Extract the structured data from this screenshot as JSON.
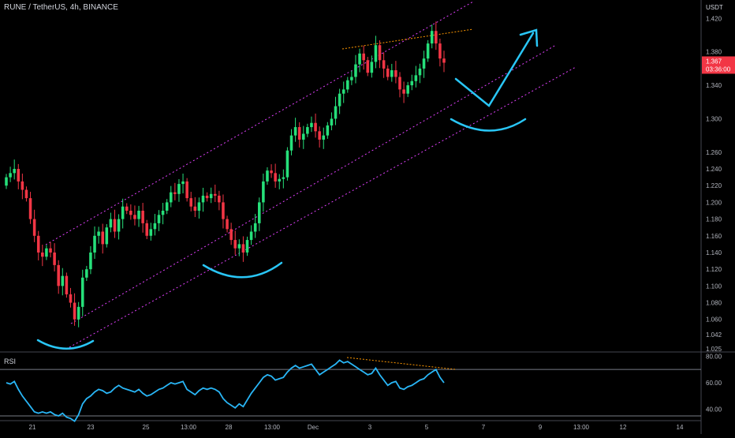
{
  "header": {
    "symbol_title": "RUNE / TetherUS, 4h, BINANCE",
    "currency": "USDT"
  },
  "price_tag": {
    "value": "1.367",
    "countdown": "03:36:00",
    "color": "#f23645"
  },
  "rsi_label": "RSI",
  "colors": {
    "up": "#26a69a",
    "up_bright": "#00e676",
    "down": "#f23645",
    "rsi": "#29b6f6",
    "channel": "#e040fb",
    "trend_dotted": "#ff9800",
    "annotation": "#29c6f6"
  },
  "chart_data": [
    {
      "type": "candlestick",
      "title": "RUNE / TetherUS, 4h, BINANCE",
      "price_axis_labels": [
        "1.420",
        "1.380",
        "1.340",
        "1.300",
        "1.260",
        "1.240",
        "1.220",
        "1.200",
        "1.180",
        "1.160",
        "1.140",
        "1.120",
        "1.100",
        "1.080",
        "1.060",
        "1.042",
        "1.025"
      ],
      "ylim": [
        1.025,
        1.44
      ],
      "time_axis_labels": [
        "21",
        "23",
        "25",
        "13:00",
        "28",
        "13:00",
        "Dec",
        "3",
        "5",
        "7",
        "9",
        "13:00",
        "12",
        "14"
      ],
      "last_price": 1.367,
      "close_series": [
        1.23,
        1.235,
        1.24,
        1.225,
        1.215,
        1.205,
        1.18,
        1.16,
        1.14,
        1.135,
        1.145,
        1.14,
        1.125,
        1.1,
        1.112,
        1.09,
        1.08,
        1.06,
        1.075,
        1.11,
        1.12,
        1.14,
        1.16,
        1.165,
        1.15,
        1.17,
        1.18,
        1.165,
        1.18,
        1.195,
        1.19,
        1.185,
        1.18,
        1.19,
        1.175,
        1.16,
        1.168,
        1.175,
        1.185,
        1.19,
        1.2,
        1.212,
        1.21,
        1.222,
        1.225,
        1.205,
        1.195,
        1.19,
        1.2,
        1.208,
        1.205,
        1.21,
        1.208,
        1.2,
        1.18,
        1.168,
        1.155,
        1.145,
        1.15,
        1.14,
        1.155,
        1.165,
        1.175,
        1.2,
        1.225,
        1.238,
        1.235,
        1.225,
        1.228,
        1.23,
        1.262,
        1.28,
        1.29,
        1.275,
        1.282,
        1.29,
        1.295,
        1.285,
        1.275,
        1.28,
        1.292,
        1.3,
        1.315,
        1.33,
        1.335,
        1.346,
        1.35,
        1.365,
        1.378,
        1.37,
        1.355,
        1.368,
        1.388,
        1.37,
        1.36,
        1.35,
        1.358,
        1.35,
        1.335,
        1.33,
        1.34,
        1.345,
        1.352,
        1.36,
        1.372,
        1.39,
        1.405,
        1.39,
        1.372,
        1.367
      ],
      "rsi": {
        "levels": [
          "80.00",
          "60.00",
          "40.00"
        ],
        "ylim": [
          32,
          82
        ],
        "values": [
          60,
          59,
          61,
          55,
          50,
          46,
          42,
          38,
          37,
          38,
          37,
          38,
          36,
          35,
          37,
          34,
          33,
          31,
          36,
          44,
          48,
          50,
          53,
          55,
          54,
          52,
          53,
          56,
          58,
          56,
          55,
          54,
          53,
          55,
          52,
          50,
          51,
          53,
          55,
          56,
          58,
          60,
          59,
          60,
          61,
          55,
          53,
          51,
          54,
          56,
          55,
          56,
          55,
          53,
          48,
          45,
          43,
          41,
          44,
          42,
          47,
          52,
          56,
          60,
          64,
          66,
          65,
          62,
          63,
          64,
          68,
          71,
          73,
          71,
          72,
          73,
          74,
          70,
          66,
          68,
          70,
          72,
          74,
          77,
          75,
          76,
          74,
          72,
          70,
          68,
          66,
          67,
          71,
          66,
          62,
          58,
          60,
          61,
          56,
          55,
          57,
          58,
          60,
          62,
          63,
          66,
          68,
          70,
          64,
          60
        ]
      }
    }
  ]
}
